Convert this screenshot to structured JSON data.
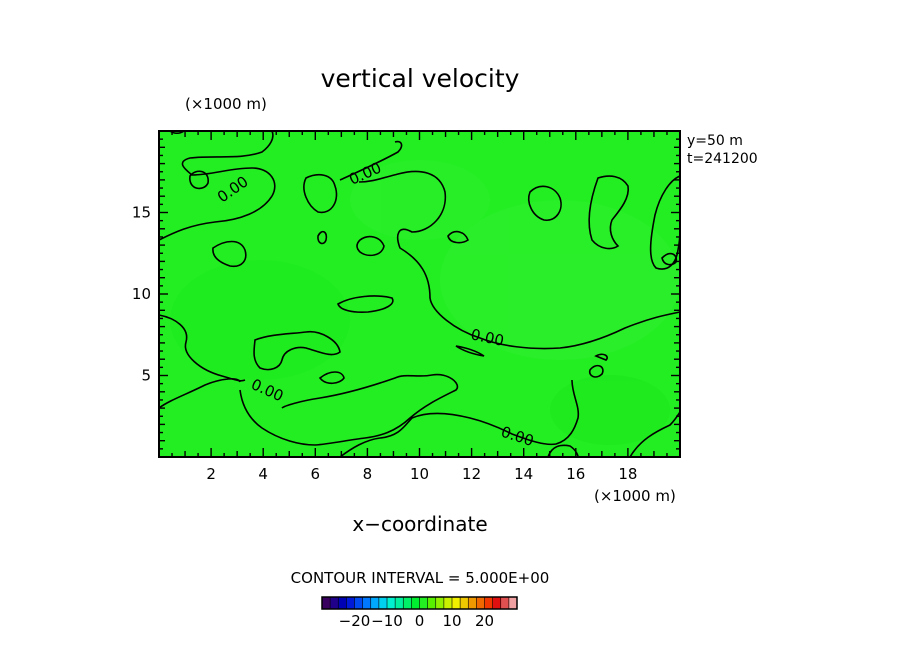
{
  "chart_data": {
    "type": "heatmap",
    "title": "vertical velocity",
    "xlabel": "x−coordinate",
    "y_unit_label": "(×1000 m)",
    "x_unit_label": "(×1000 m)",
    "xlim": [
      0,
      20
    ],
    "ylim": [
      0,
      20
    ],
    "x_ticks": [
      2,
      4,
      6,
      8,
      10,
      12,
      14,
      16,
      18
    ],
    "y_ticks": [
      5,
      10,
      15
    ],
    "annotations": [
      "y=50 m",
      "t=241200"
    ],
    "contour_interval_label": "CONTOUR INTERVAL = 5.000E+00",
    "contour_labels": [
      "0.00",
      "0.00",
      "0.00",
      "0.00",
      "0.00"
    ],
    "field_color": "#22ee22",
    "colorbar": {
      "colors": [
        "#3a0060",
        "#20008a",
        "#0000b4",
        "#0018d8",
        "#0048f0",
        "#0078ff",
        "#00a8ff",
        "#00d0f0",
        "#00f0d0",
        "#00f0a0",
        "#00f068",
        "#00ee30",
        "#22ee22",
        "#58f000",
        "#90f000",
        "#c8f000",
        "#f0f000",
        "#f0c800",
        "#f09800",
        "#f06800",
        "#f03800",
        "#e01010",
        "#e05050",
        "#f0a0a0"
      ],
      "ticks": [
        -20,
        -10,
        0,
        10,
        20
      ],
      "tick_labels": [
        "−20",
        "−10",
        "0",
        "10",
        "20"
      ],
      "range": [
        -30,
        30
      ]
    }
  }
}
